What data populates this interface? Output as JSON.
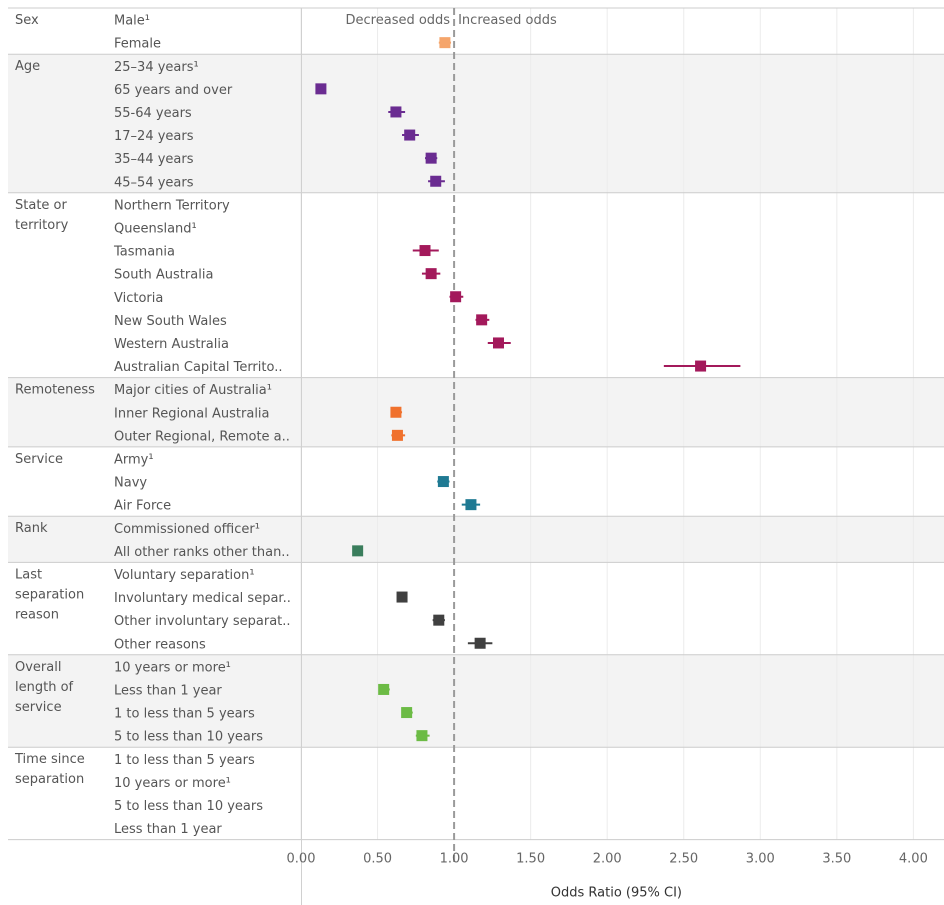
{
  "chart_data": {
    "type": "scatter",
    "subtype": "forest-plot",
    "xlabel": "Odds Ratio (95% CI)",
    "xlim": [
      0,
      4.2
    ],
    "x_ticks": [
      "0.00",
      "0.50",
      "1.00",
      "1.50",
      "2.00",
      "2.50",
      "3.00",
      "3.50",
      "4.00"
    ],
    "x_tick_values": [
      0,
      0.5,
      1,
      1.5,
      2,
      2.5,
      3,
      3.5,
      4
    ],
    "reference_line": 1.0,
    "annotations": [
      "Decreased odds",
      "Increased odds"
    ],
    "grid": "vertical",
    "groups": [
      {
        "name": "Sex",
        "color": "#f5a56b",
        "shaded": false,
        "rows": [
          {
            "label": "Male¹",
            "or": null
          },
          {
            "label": "Female",
            "or": 0.94,
            "lo": 0.9,
            "hi": 0.98
          }
        ]
      },
      {
        "name": "Age",
        "color": "#6a2c91",
        "shaded": true,
        "rows": [
          {
            "label": "25–34 years¹",
            "or": null
          },
          {
            "label": "65 years and over",
            "or": 0.13,
            "lo": 0.1,
            "hi": 0.16
          },
          {
            "label": "55-64 years",
            "or": 0.62,
            "lo": 0.57,
            "hi": 0.68
          },
          {
            "label": "17–24 years",
            "or": 0.71,
            "lo": 0.66,
            "hi": 0.77
          },
          {
            "label": "35–44 years",
            "or": 0.85,
            "lo": 0.81,
            "hi": 0.89
          },
          {
            "label": "45–54 years",
            "or": 0.88,
            "lo": 0.83,
            "hi": 0.94
          }
        ]
      },
      {
        "name": "State or territory",
        "color": "#a3195b",
        "shaded": false,
        "rows": [
          {
            "label": "Northern Territory",
            "or": null
          },
          {
            "label": "Queensland¹",
            "or": null
          },
          {
            "label": "Tasmania",
            "or": 0.81,
            "lo": 0.73,
            "hi": 0.9
          },
          {
            "label": "South Australia",
            "or": 0.85,
            "lo": 0.79,
            "hi": 0.91
          },
          {
            "label": "Victoria",
            "or": 1.01,
            "lo": 0.97,
            "hi": 1.06
          },
          {
            "label": "New South Wales",
            "or": 1.18,
            "lo": 1.14,
            "hi": 1.23
          },
          {
            "label": "Western Australia",
            "or": 1.29,
            "lo": 1.22,
            "hi": 1.37
          },
          {
            "label": "Australian Capital Territo..",
            "or": 2.61,
            "lo": 2.37,
            "hi": 2.87
          }
        ]
      },
      {
        "name": "Remoteness",
        "color": "#f0712d",
        "shaded": true,
        "rows": [
          {
            "label": "Major cities of Australia¹",
            "or": null
          },
          {
            "label": "Inner Regional Australia",
            "or": 0.62,
            "lo": 0.59,
            "hi": 0.66
          },
          {
            "label": "Outer Regional, Remote a..",
            "or": 0.63,
            "lo": 0.59,
            "hi": 0.68
          }
        ]
      },
      {
        "name": "Service",
        "color": "#1f7a93",
        "shaded": false,
        "rows": [
          {
            "label": "Army¹",
            "or": null
          },
          {
            "label": "Navy",
            "or": 0.93,
            "lo": 0.89,
            "hi": 0.97
          },
          {
            "label": "Air Force",
            "or": 1.11,
            "lo": 1.05,
            "hi": 1.17
          }
        ]
      },
      {
        "name": "Rank",
        "color": "#3a7d5c",
        "shaded": true,
        "rows": [
          {
            "label": "Commissioned officer¹",
            "or": null
          },
          {
            "label": "All other ranks other than..",
            "or": 0.37,
            "lo": 0.34,
            "hi": 0.4
          }
        ]
      },
      {
        "name": "Last separation reason",
        "color": "#404040",
        "shaded": false,
        "rows": [
          {
            "label": "Voluntary separation¹",
            "or": null
          },
          {
            "label": "Involuntary medical separ..",
            "or": 0.66,
            "lo": 0.63,
            "hi": 0.69
          },
          {
            "label": "Other involuntary separat..",
            "or": 0.9,
            "lo": 0.86,
            "hi": 0.94
          },
          {
            "label": "Other reasons",
            "or": 1.17,
            "lo": 1.09,
            "hi": 1.25
          }
        ]
      },
      {
        "name": "Overall length of service",
        "color": "#6cbb45",
        "shaded": true,
        "rows": [
          {
            "label": "10 years or more¹",
            "or": null
          },
          {
            "label": "Less than 1 year",
            "or": 0.54,
            "lo": 0.51,
            "hi": 0.58
          },
          {
            "label": "1 to less than 5 years",
            "or": 0.69,
            "lo": 0.66,
            "hi": 0.73
          },
          {
            "label": "5 to less than 10 years",
            "or": 0.79,
            "lo": 0.75,
            "hi": 0.84
          }
        ]
      },
      {
        "name": "Time since separation",
        "color": "#888888",
        "shaded": false,
        "rows": [
          {
            "label": "1 to less than 5 years",
            "or": null
          },
          {
            "label": "10 years or more¹",
            "or": null
          },
          {
            "label": "5 to less than 10 years",
            "or": null
          },
          {
            "label": "Less than 1 year",
            "or": null
          }
        ]
      }
    ]
  }
}
